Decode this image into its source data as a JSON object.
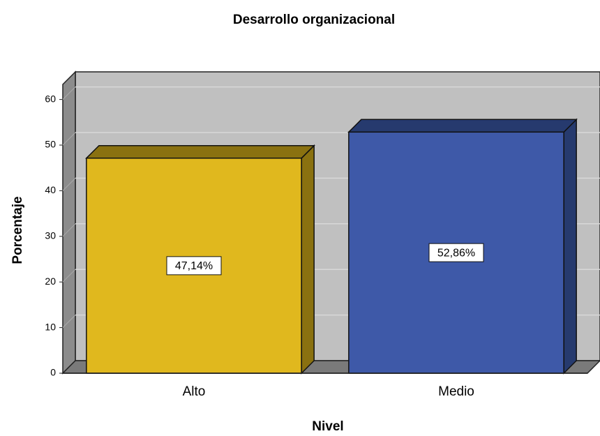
{
  "chart_data": {
    "type": "bar3d",
    "title": "Desarrollo organizacional",
    "x_label": "Nivel",
    "y_label": "Porcentaje",
    "categories": [
      "Alto",
      "Medio"
    ],
    "values": [
      47.14,
      52.86
    ],
    "value_labels": [
      "47,14%",
      "52,86%"
    ],
    "colors": [
      "#e0b81e",
      "#3e59a8"
    ],
    "shade_colors": [
      "#8a7110",
      "#263a6e"
    ],
    "ylim": [
      0,
      63.3
    ],
    "yticks": [
      0,
      10,
      20,
      30,
      40,
      50,
      60
    ],
    "grid": true
  }
}
